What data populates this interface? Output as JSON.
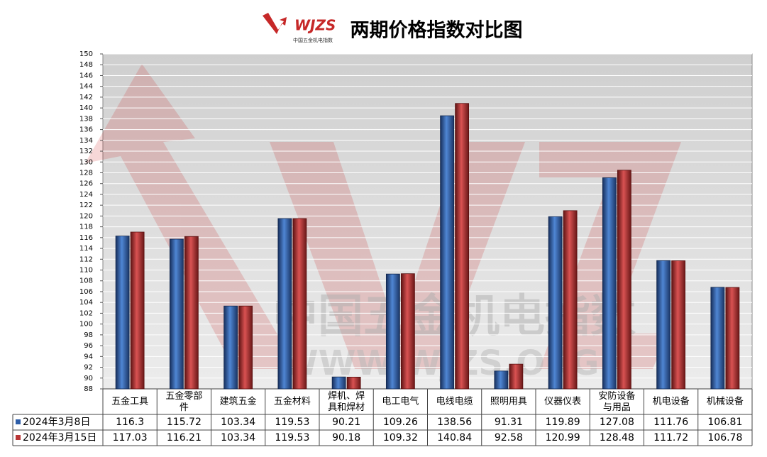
{
  "chart_data": {
    "type": "bar",
    "title": "两期价格指数对比图",
    "logo": "WJZS",
    "logo_subtitle": "中国五金机电指数",
    "watermark": "中国五金机电指数",
    "watermark_url": "WWW.WJZS.ORG",
    "categories": [
      "五金工具",
      "五金零部件",
      "建筑五金",
      "五金材料",
      "焊机、焊具和焊材",
      "电工电气",
      "电线电缆",
      "照明用具",
      "仪器仪表",
      "安防设备与用品",
      "机电设备",
      "机械设备"
    ],
    "series": [
      {
        "name": "2024年3月8日",
        "color": "#2d5da8",
        "values": [
          116.3,
          115.72,
          103.34,
          119.53,
          90.21,
          109.26,
          138.56,
          91.31,
          119.89,
          127.08,
          111.76,
          106.81
        ]
      },
      {
        "name": "2024年3月15日",
        "color": "#b93636",
        "values": [
          117.03,
          116.21,
          103.34,
          119.53,
          90.18,
          109.32,
          140.84,
          92.58,
          120.99,
          128.48,
          111.72,
          106.78
        ]
      }
    ],
    "ylim": [
      88,
      150
    ],
    "yticks": [
      88,
      90,
      92,
      94,
      96,
      98,
      100,
      102,
      104,
      106,
      108,
      110,
      112,
      114,
      116,
      118,
      120,
      122,
      124,
      126,
      128,
      130,
      132,
      134,
      136,
      138,
      140,
      142,
      144,
      146,
      148,
      150
    ],
    "grid": true
  }
}
